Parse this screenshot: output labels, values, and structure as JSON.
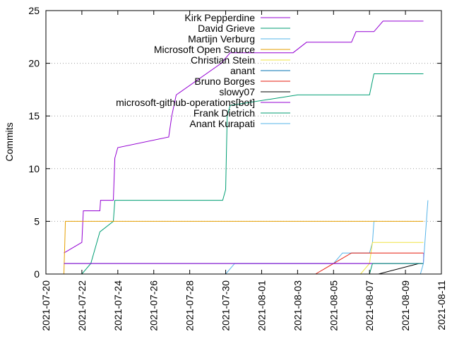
{
  "chart_data": {
    "type": "line",
    "title": "",
    "xlabel": "",
    "ylabel": "Commits",
    "xlim": [
      "2021-07-20",
      "2021-08-11"
    ],
    "ylim": [
      0,
      25
    ],
    "x_ticks": [
      "2021-07-20",
      "2021-07-22",
      "2021-07-24",
      "2021-07-26",
      "2021-07-28",
      "2021-07-30",
      "2021-08-01",
      "2021-08-03",
      "2021-08-05",
      "2021-08-07",
      "2021-08-09",
      "2021-08-11"
    ],
    "y_ticks": [
      0,
      5,
      10,
      15,
      20,
      25
    ],
    "grid": true,
    "legend_position": "top-right",
    "series": [
      {
        "name": "Kirk Pepperdine",
        "color": "#9400d3",
        "points": [
          [
            "2021-07-21T00:00",
            2
          ],
          [
            "2021-07-22T00:00",
            3
          ],
          [
            "2021-07-22T02:00",
            6
          ],
          [
            "2021-07-23T00:00",
            6
          ],
          [
            "2021-07-23T01:00",
            7
          ],
          [
            "2021-07-23T18:00",
            7
          ],
          [
            "2021-07-23T20:00",
            11
          ],
          [
            "2021-07-24T00:00",
            12
          ],
          [
            "2021-07-26T20:00",
            13
          ],
          [
            "2021-07-27T00:00",
            15
          ],
          [
            "2021-07-27T06:00",
            17
          ],
          [
            "2021-07-29T18:00",
            20
          ],
          [
            "2021-07-30T06:00",
            21
          ],
          [
            "2021-08-02T18:00",
            21
          ],
          [
            "2021-08-03T12:00",
            22
          ],
          [
            "2021-08-06T00:00",
            22
          ],
          [
            "2021-08-06T06:00",
            23
          ],
          [
            "2021-08-07T06:00",
            23
          ],
          [
            "2021-08-07T18:00",
            24
          ],
          [
            "2021-08-10T00:00",
            24
          ]
        ]
      },
      {
        "name": "David Grieve",
        "color": "#009e73",
        "points": [
          [
            "2021-07-22T00:00",
            0
          ],
          [
            "2021-07-22T12:00",
            1
          ],
          [
            "2021-07-23T00:00",
            4
          ],
          [
            "2021-07-23T18:00",
            5
          ],
          [
            "2021-07-23T20:00",
            7
          ],
          [
            "2021-07-29T20:00",
            7
          ],
          [
            "2021-07-30T00:00",
            8
          ],
          [
            "2021-07-30T02:00",
            15
          ],
          [
            "2021-07-30T06:00",
            16
          ],
          [
            "2021-08-03T00:00",
            17
          ],
          [
            "2021-08-07T00:00",
            17
          ],
          [
            "2021-08-07T06:00",
            19
          ],
          [
            "2021-08-10T00:00",
            19
          ]
        ]
      },
      {
        "name": "Martijn Verburg",
        "color": "#56b4e9",
        "points": [
          [
            "2021-07-30T00:00",
            0
          ],
          [
            "2021-07-30T12:00",
            1
          ],
          [
            "2021-08-03T12:00",
            1
          ],
          [
            "2021-08-05T00:00",
            1
          ],
          [
            "2021-08-05T12:00",
            2
          ],
          [
            "2021-08-06T00:00",
            2
          ],
          [
            "2021-08-07T00:00",
            2
          ],
          [
            "2021-08-07T04:00",
            3
          ],
          [
            "2021-08-07T06:00",
            5
          ],
          [
            "2021-08-07T10:00",
            5
          ]
        ]
      },
      {
        "name": "Microsoft Open Source",
        "color": "#e69f00",
        "points": [
          [
            "2021-07-21T00:00",
            0
          ],
          [
            "2021-07-21T02:00",
            5
          ],
          [
            "2021-08-10T00:00",
            5
          ]
        ]
      },
      {
        "name": "Christian Stein",
        "color": "#f0e442",
        "points": [
          [
            "2021-08-06T12:00",
            0
          ],
          [
            "2021-08-07T00:00",
            1
          ],
          [
            "2021-08-07T04:00",
            3
          ],
          [
            "2021-08-10T00:00",
            3
          ]
        ]
      },
      {
        "name": "anant",
        "color": "#0072b2",
        "points": [
          [
            "2021-07-21T00:00",
            1
          ],
          [
            "2021-08-10T00:00",
            1
          ]
        ]
      },
      {
        "name": "Bruno Borges",
        "color": "#e51e10",
        "points": [
          [
            "2021-08-04T00:00",
            0
          ],
          [
            "2021-08-05T00:00",
            1
          ],
          [
            "2021-08-06T00:00",
            2
          ],
          [
            "2021-08-10T00:00",
            2
          ]
        ]
      },
      {
        "name": "slowy07",
        "color": "#000000",
        "points": [
          [
            "2021-08-07T12:00",
            0
          ],
          [
            "2021-08-09T18:00",
            1
          ],
          [
            "2021-08-10T00:00",
            1
          ]
        ]
      },
      {
        "name": "microsoft-github-operations[bot]",
        "color": "#9400d3",
        "points": [
          [
            "2021-07-21T00:00",
            1
          ],
          [
            "2021-08-10T00:00",
            1
          ],
          [
            "2021-08-10T00:30",
            2
          ]
        ]
      },
      {
        "name": "Frank Dietrich",
        "color": "#009e73",
        "points": [
          [
            "2021-08-07T00:00",
            0
          ],
          [
            "2021-08-07T04:00",
            1
          ],
          [
            "2021-08-10T00:00",
            1
          ]
        ]
      },
      {
        "name": "Anant Kurapati",
        "color": "#56b4e9",
        "points": [
          [
            "2021-08-09T20:00",
            0
          ],
          [
            "2021-08-10T00:00",
            1
          ],
          [
            "2021-08-10T06:00",
            7
          ]
        ]
      }
    ]
  }
}
